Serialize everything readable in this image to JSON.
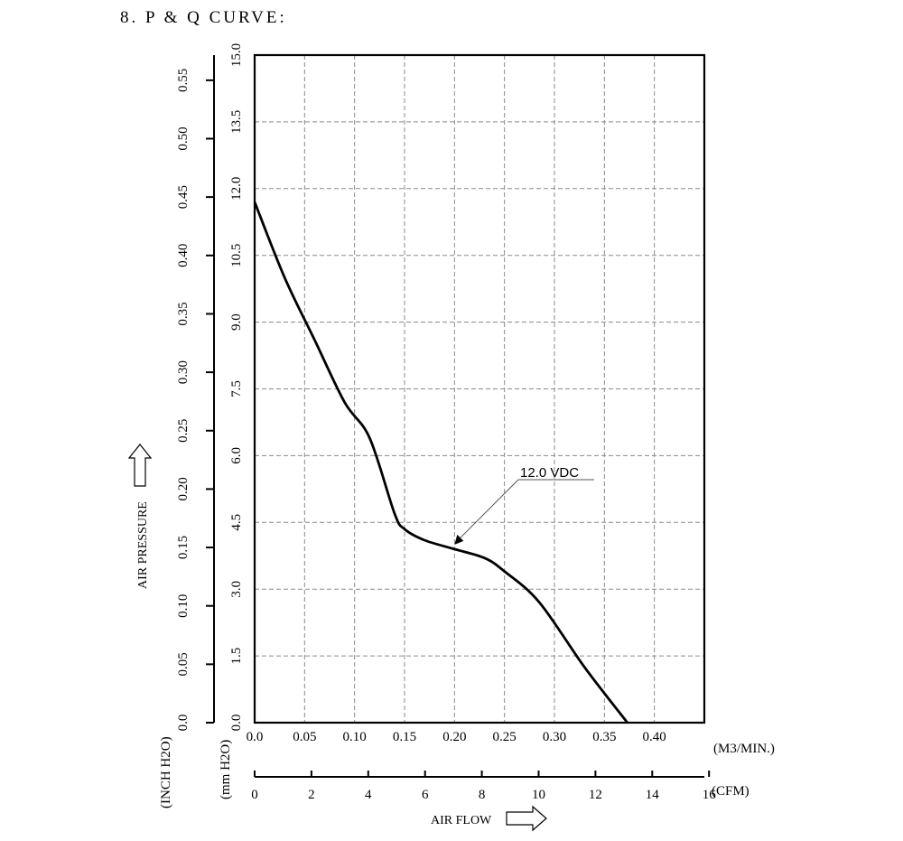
{
  "title": "8. P & Q CURVE:",
  "chart_data": {
    "type": "line",
    "x_label": "AIR FLOW",
    "y_label": "AIR PRESSURE",
    "x_unit_m3": "(M3/MIN.)",
    "x_unit_cfm": "(CFM)",
    "y_unit_inch": "(INCH H2O)",
    "y_unit_mm": "(mm H2O)",
    "x_ticks_m3": [
      "0.0",
      "0.05",
      "0.10",
      "0.15",
      "0.20",
      "0.25",
      "0.30",
      "0.35",
      "0.40"
    ],
    "x_ticks_cfm": [
      "0",
      "2",
      "4",
      "6",
      "8",
      "10",
      "12",
      "14",
      "16"
    ],
    "y_ticks_mm": [
      "0.0",
      "1.5",
      "3.0",
      "4.5",
      "6.0",
      "7.5",
      "9.0",
      "10.5",
      "12.0",
      "13.5",
      "15.0"
    ],
    "y_ticks_inch": [
      "0.0",
      "0.05",
      "0.10",
      "0.15",
      "0.20",
      "0.25",
      "0.30",
      "0.35",
      "0.40",
      "0.45",
      "0.50",
      "0.55"
    ],
    "xlim": [
      0,
      0.45
    ],
    "ylim": [
      0,
      15.0
    ],
    "grid": true,
    "series": [
      {
        "name": "12.0 VDC",
        "x_m3_per_min": [
          0.0,
          0.03,
          0.06,
          0.09,
          0.115,
          0.14,
          0.15,
          0.17,
          0.2,
          0.23,
          0.25,
          0.285,
          0.33,
          0.373
        ],
        "y_mm_h2o": [
          11.7,
          10.0,
          8.6,
          7.2,
          6.4,
          4.7,
          4.35,
          4.1,
          3.9,
          3.7,
          3.4,
          2.7,
          1.25,
          0.0
        ]
      }
    ]
  }
}
